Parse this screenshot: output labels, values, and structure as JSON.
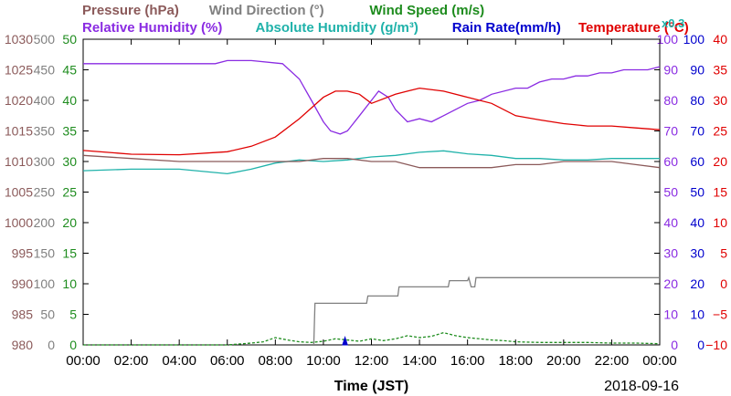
{
  "chart_data": {
    "type": "line",
    "date": "2018-09-16",
    "xlabel": "Time (JST)",
    "x_ticks": [
      "00:00",
      "02:00",
      "04:00",
      "06:00",
      "08:00",
      "10:00",
      "12:00",
      "14:00",
      "16:00",
      "18:00",
      "20:00",
      "22:00",
      "00:00"
    ],
    "legend_row1": [
      {
        "text": "Pressure (hPa)",
        "color": "#8b5a5a"
      },
      {
        "text": "Wind Direction (°)",
        "color": "#808080"
      },
      {
        "text": "Wind Speed (m/s)",
        "color": "#1e8c1e"
      }
    ],
    "legend_row2": [
      {
        "text": "Relative Humidity (%)",
        "color": "#8a2be2"
      },
      {
        "text": "Absolute Humidity (g/m³)",
        "color": "#20b2aa"
      },
      {
        "text": "Rain Rate(mm/h)",
        "color": "#0000cd"
      },
      {
        "text": "Temperature (°C)",
        "color": "#e00000"
      }
    ],
    "rain_scale_note": "x0.3",
    "axes": {
      "pressure": {
        "ticks": [
          "1030",
          "1025",
          "1020",
          "1015",
          "1010",
          "1005",
          "1000",
          "995",
          "990",
          "985",
          "980"
        ],
        "range": [
          980,
          1030
        ],
        "color": "#8b5a5a"
      },
      "wind_direction": {
        "ticks": [
          "500",
          "450",
          "400",
          "350",
          "300",
          "250",
          "200",
          "150",
          "100",
          "50",
          "0"
        ],
        "range": [
          0,
          500
        ],
        "color": "#808080"
      },
      "wind_speed": {
        "ticks": [
          "50",
          "45",
          "40",
          "35",
          "30",
          "25",
          "20",
          "15",
          "10",
          "5",
          "0"
        ],
        "range": [
          0,
          50
        ],
        "color": "#1e8c1e"
      },
      "relative_humidity": {
        "ticks": [
          "100",
          "90",
          "80",
          "70",
          "60",
          "50",
          "40",
          "30",
          "20",
          "10",
          "0"
        ],
        "range": [
          0,
          100
        ],
        "color": "#8a2be2"
      },
      "rain_rate": {
        "ticks": [
          "100",
          "90",
          "80",
          "70",
          "60",
          "50",
          "40",
          "30",
          "20",
          "10",
          "0"
        ],
        "range": [
          0,
          100
        ],
        "color": "#0000cd"
      },
      "temperature": {
        "ticks": [
          "40",
          "35",
          "30",
          "25",
          "20",
          "15",
          "10",
          "5",
          "0",
          "−5",
          "−10"
        ],
        "range": [
          -10,
          40
        ],
        "color": "#e00000"
      }
    },
    "series": [
      {
        "name": "Relative Humidity (%)",
        "axis": "relative_humidity",
        "color": "#8a2be2",
        "x": [
          0,
          2,
          4,
          5.5,
          6,
          7,
          8.3,
          9,
          9.5,
          10,
          10.3,
          10.7,
          11,
          11.5,
          12,
          12.3,
          12.7,
          13,
          13.5,
          14,
          14.5,
          15,
          15.5,
          16,
          16.5,
          17,
          18,
          18.5,
          19,
          19.5,
          20,
          20.5,
          21,
          21.5,
          22,
          22.5,
          23,
          23.5,
          24
        ],
        "y": [
          92,
          92,
          92,
          92,
          93,
          93,
          92,
          87,
          80,
          73,
          70,
          69,
          70,
          75,
          80,
          83,
          81,
          77,
          73,
          74,
          73,
          75,
          77,
          79,
          80,
          82,
          84,
          84,
          86,
          87,
          87,
          88,
          88,
          89,
          89,
          90,
          90,
          90,
          91
        ]
      },
      {
        "name": "Temperature (°C)",
        "axis": "temperature",
        "color": "#e00000",
        "x": [
          0,
          2,
          4,
          6,
          7,
          8,
          9,
          10,
          10.5,
          11,
          11.5,
          12,
          13,
          13.5,
          14,
          15,
          16,
          17,
          18,
          19,
          20,
          21,
          22,
          23,
          24
        ],
        "y": [
          21.8,
          21.2,
          21.1,
          21.6,
          22.5,
          24,
          27,
          30.5,
          31.5,
          31.5,
          31,
          29.5,
          31,
          31.5,
          32,
          31.5,
          30.5,
          29.5,
          27.5,
          26.8,
          26.2,
          25.8,
          25.8,
          25.5,
          25.2
        ]
      },
      {
        "name": "Absolute Humidity (g/m³)",
        "axis": "relative_humidity",
        "color": "#20b2aa",
        "x": [
          0,
          2,
          4,
          6,
          7,
          8,
          9,
          10,
          11,
          12,
          13,
          14,
          15,
          16,
          17,
          18,
          19,
          20,
          21,
          22,
          23,
          24
        ],
        "y": [
          57,
          57.5,
          57.5,
          56,
          57.5,
          59.5,
          60.5,
          60,
          60.5,
          61.5,
          62,
          63,
          63.5,
          62.5,
          62,
          61,
          61,
          60.5,
          60.5,
          61,
          61,
          61
        ]
      },
      {
        "name": "Pressure (hPa)",
        "axis": "pressure",
        "color": "#8b5a5a",
        "x": [
          0,
          2,
          4,
          6,
          8,
          9,
          10,
          11,
          12,
          13,
          14,
          15,
          16,
          17,
          18,
          19,
          20,
          21,
          22,
          23,
          24
        ],
        "y": [
          1011,
          1010.5,
          1010,
          1010,
          1010,
          1010,
          1010.5,
          1010.5,
          1010,
          1010,
          1009,
          1009,
          1009,
          1009,
          1009.5,
          1009.5,
          1010,
          1010,
          1010,
          1009.5,
          1009
        ]
      },
      {
        "name": "Wind Direction (°)",
        "axis": "wind_direction",
        "color": "#808080",
        "x": [
          9.6,
          9.65,
          11.8,
          11.85,
          13.1,
          13.15,
          15.2,
          15.25,
          16.0,
          16.05,
          16.15,
          16.3,
          16.35,
          24
        ],
        "y": [
          0,
          68,
          68,
          80,
          80,
          95,
          95,
          105,
          105,
          110,
          95,
          95,
          110,
          110
        ]
      },
      {
        "name": "Wind Speed (m/s)",
        "axis": "wind_speed",
        "color": "#1e8c1e",
        "x": [
          0,
          2,
          4,
          6,
          7,
          7.5,
          8,
          8.5,
          9,
          9.5,
          10,
          10.5,
          11,
          11.5,
          12,
          12.5,
          13,
          13.5,
          14,
          14.5,
          15,
          15.5,
          16,
          16.5,
          17,
          17.5,
          18,
          19,
          20,
          21,
          22,
          23,
          24
        ],
        "y": [
          0,
          0,
          0,
          0,
          0.3,
          0.5,
          1.2,
          0.8,
          0.5,
          0.4,
          0.6,
          1,
          0.8,
          0.6,
          1,
          0.7,
          1,
          1.5,
          1.2,
          1.4,
          2,
          1.5,
          1.2,
          1,
          0.8,
          0.7,
          0.5,
          0.4,
          0.4,
          0.4,
          0.3,
          0.3,
          0.2
        ]
      },
      {
        "name": "Rain Rate(mm/h)",
        "axis": "rain_rate",
        "color": "#0000cd",
        "x": [
          10.8,
          10.9,
          11.0
        ],
        "y": [
          0,
          2.5,
          0
        ]
      }
    ]
  }
}
